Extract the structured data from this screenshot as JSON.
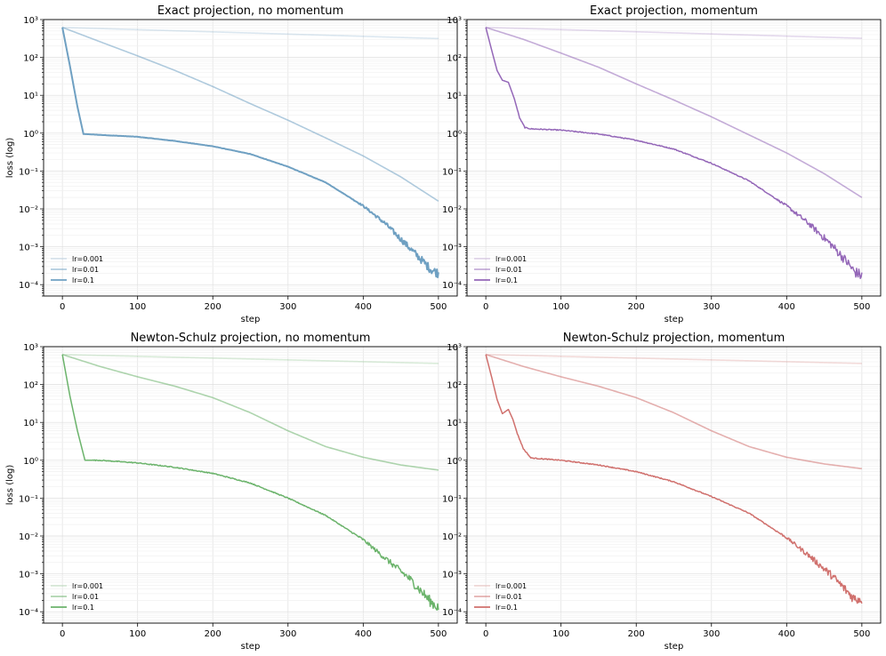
{
  "figure": {
    "ylabel": "loss (log)",
    "xlabel": "step"
  },
  "chart_data": [
    {
      "type": "line",
      "title": "Exact projection, no momentum",
      "xlabel": "step",
      "ylabel": "loss (log)",
      "yscale": "log",
      "xlim": [
        -25,
        525
      ],
      "ylim": [
        5e-05,
        1000
      ],
      "xticks": [
        0,
        100,
        200,
        300,
        400,
        500
      ],
      "yticks": [
        0.0001,
        0.001,
        0.01,
        0.1,
        1,
        10,
        100,
        1000
      ],
      "grid": true,
      "legend": "bottom-left",
      "color": "#6fa0c2",
      "series": [
        {
          "name": "lr=0.001",
          "alpha": 0.25,
          "x": [
            0,
            500
          ],
          "y": [
            620,
            315
          ]
        },
        {
          "name": "lr=0.01",
          "alpha": 0.55,
          "x": [
            0,
            50,
            100,
            150,
            200,
            250,
            300,
            350,
            400,
            450,
            500
          ],
          "y": [
            620,
            260,
            110,
            45,
            17,
            6,
            2.2,
            0.75,
            0.25,
            0.07,
            0.016
          ]
        },
        {
          "name": "lr=0.1",
          "alpha": 1.0,
          "x": [
            0,
            10,
            20,
            28,
            50,
            100,
            150,
            200,
            250,
            300,
            350,
            400,
            430,
            460,
            480,
            490,
            500
          ],
          "y": [
            620,
            60,
            5,
            0.95,
            0.9,
            0.8,
            0.62,
            0.45,
            0.28,
            0.13,
            0.05,
            0.012,
            0.004,
            0.001,
            0.0004,
            0.00025,
            0.0002
          ]
        }
      ]
    },
    {
      "type": "line",
      "title": "Exact projection, momentum",
      "xlabel": "step",
      "yscale": "log",
      "xlim": [
        -25,
        525
      ],
      "ylim": [
        5e-05,
        1000
      ],
      "xticks": [
        0,
        100,
        200,
        300,
        400,
        500
      ],
      "yticks": [
        0.0001,
        0.001,
        0.01,
        0.1,
        1,
        10,
        100,
        1000
      ],
      "grid": true,
      "legend": "bottom-left",
      "color": "#9467b8",
      "series": [
        {
          "name": "lr=0.001",
          "alpha": 0.25,
          "x": [
            0,
            500
          ],
          "y": [
            620,
            320
          ]
        },
        {
          "name": "lr=0.01",
          "alpha": 0.55,
          "x": [
            0,
            50,
            100,
            150,
            200,
            250,
            300,
            350,
            400,
            450,
            500
          ],
          "y": [
            620,
            300,
            130,
            55,
            20,
            7.5,
            2.7,
            0.9,
            0.3,
            0.085,
            0.02
          ]
        },
        {
          "name": "lr=0.1",
          "alpha": 1.0,
          "x": [
            0,
            8,
            15,
            22,
            30,
            38,
            45,
            52,
            60,
            100,
            150,
            200,
            250,
            300,
            350,
            400,
            430,
            460,
            480,
            490,
            500
          ],
          "y": [
            620,
            150,
            45,
            25,
            22,
            8,
            2.5,
            1.4,
            1.3,
            1.2,
            0.95,
            0.65,
            0.38,
            0.16,
            0.055,
            0.012,
            0.004,
            0.0011,
            0.0004,
            0.00022,
            0.00017
          ]
        }
      ]
    },
    {
      "type": "line",
      "title": "Newton-Schulz projection, no momentum",
      "xlabel": "step",
      "ylabel": "loss (log)",
      "yscale": "log",
      "xlim": [
        -25,
        525
      ],
      "ylim": [
        5e-05,
        1000
      ],
      "xticks": [
        0,
        100,
        200,
        300,
        400,
        500
      ],
      "yticks": [
        0.0001,
        0.001,
        0.01,
        0.1,
        1,
        10,
        100,
        1000
      ],
      "grid": true,
      "legend": "bottom-left",
      "color": "#6bb36b",
      "series": [
        {
          "name": "lr=0.001",
          "alpha": 0.25,
          "x": [
            0,
            500
          ],
          "y": [
            620,
            360
          ]
        },
        {
          "name": "lr=0.01",
          "alpha": 0.55,
          "x": [
            0,
            50,
            100,
            150,
            200,
            250,
            300,
            350,
            400,
            450,
            500
          ],
          "y": [
            620,
            300,
            160,
            90,
            45,
            18,
            6,
            2.3,
            1.2,
            0.75,
            0.55
          ]
        },
        {
          "name": "lr=0.1",
          "alpha": 1.0,
          "x": [
            0,
            10,
            20,
            30,
            50,
            100,
            150,
            200,
            250,
            300,
            350,
            400,
            430,
            460,
            480,
            490,
            500
          ],
          "y": [
            620,
            50,
            6,
            1.0,
            1.0,
            0.85,
            0.65,
            0.45,
            0.25,
            0.1,
            0.035,
            0.008,
            0.0025,
            0.0008,
            0.0003,
            0.00018,
            0.00013
          ]
        }
      ]
    },
    {
      "type": "line",
      "title": "Newton-Schulz projection, momentum",
      "xlabel": "step",
      "yscale": "log",
      "xlim": [
        -25,
        525
      ],
      "ylim": [
        5e-05,
        1000
      ],
      "xticks": [
        0,
        100,
        200,
        300,
        400,
        500
      ],
      "yticks": [
        0.0001,
        0.001,
        0.01,
        0.1,
        1,
        10,
        100,
        1000
      ],
      "grid": true,
      "legend": "bottom-left",
      "color": "#d0706d",
      "series": [
        {
          "name": "lr=0.001",
          "alpha": 0.25,
          "x": [
            0,
            500
          ],
          "y": [
            620,
            360
          ]
        },
        {
          "name": "lr=0.01",
          "alpha": 0.55,
          "x": [
            0,
            50,
            100,
            150,
            200,
            250,
            300,
            350,
            400,
            450,
            500
          ],
          "y": [
            620,
            300,
            160,
            90,
            45,
            18,
            6,
            2.3,
            1.2,
            0.8,
            0.6
          ]
        },
        {
          "name": "lr=0.1",
          "alpha": 1.0,
          "x": [
            0,
            8,
            15,
            22,
            30,
            36,
            42,
            50,
            60,
            100,
            150,
            200,
            250,
            300,
            350,
            400,
            430,
            460,
            480,
            490,
            500
          ],
          "y": [
            620,
            150,
            40,
            17,
            22,
            12,
            5,
            2,
            1.15,
            1.0,
            0.75,
            0.5,
            0.27,
            0.11,
            0.04,
            0.009,
            0.003,
            0.0009,
            0.00035,
            0.00022,
            0.00022
          ]
        }
      ]
    }
  ]
}
